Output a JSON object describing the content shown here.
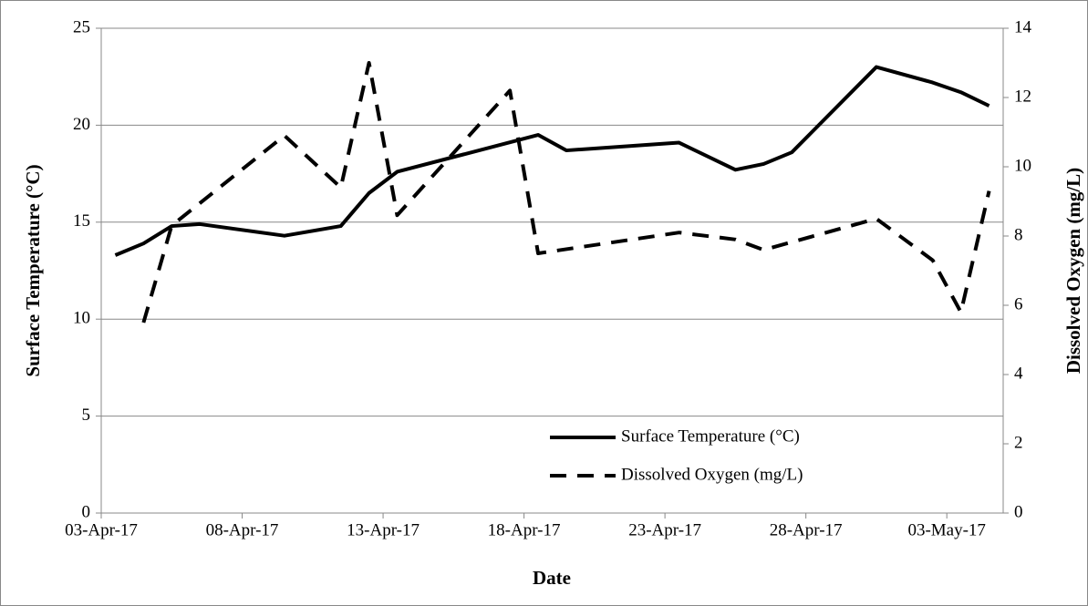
{
  "chart_data": {
    "type": "line",
    "xlabel": "Date",
    "ylabel": "Surface Temperature (°C)",
    "y2label": "Dissolved Oxygen (mg/L)",
    "xlim": [
      "2017-04-03",
      "2017-05-04"
    ],
    "xticks": [
      {
        "value": "2017-04-03",
        "label": "03-Apr-17"
      },
      {
        "value": "2017-04-08",
        "label": "08-Apr-17"
      },
      {
        "value": "2017-04-13",
        "label": "13-Apr-17"
      },
      {
        "value": "2017-04-18",
        "label": "18-Apr-17"
      },
      {
        "value": "2017-04-23",
        "label": "23-Apr-17"
      },
      {
        "value": "2017-04-28",
        "label": "28-Apr-17"
      },
      {
        "value": "2017-05-03",
        "label": "03-May-17"
      }
    ],
    "ylim": [
      0,
      25
    ],
    "yticks": [
      0,
      5,
      10,
      15,
      20,
      25
    ],
    "y2lim": [
      0,
      14
    ],
    "y2ticks": [
      0,
      2,
      4,
      6,
      8,
      10,
      12,
      14
    ],
    "grid": true,
    "legend": "lower right",
    "series": [
      {
        "name": "Surface Temperature (°C)",
        "color": "#000000",
        "dash": "solid",
        "axis": "y",
        "x": [
          "2017-04-03",
          "2017-04-04",
          "2017-04-05",
          "2017-04-06",
          "2017-04-09",
          "2017-04-11",
          "2017-04-12",
          "2017-04-13",
          "2017-04-18",
          "2017-04-19",
          "2017-04-23",
          "2017-04-25",
          "2017-04-26",
          "2017-04-27",
          "2017-04-30",
          "2017-05-02",
          "2017-05-03",
          "2017-05-04"
        ],
        "values": [
          13.3,
          13.9,
          14.8,
          14.9,
          14.3,
          14.8,
          16.5,
          17.6,
          19.5,
          18.7,
          19.1,
          17.7,
          18.0,
          18.6,
          23.0,
          22.2,
          21.7,
          21.0
        ]
      },
      {
        "name": "Dissolved Oxygen (mg/L)",
        "color": "#000000",
        "dash": "dashed",
        "axis": "y2",
        "x": [
          "2017-04-04",
          "2017-04-05",
          "2017-04-09",
          "2017-04-11",
          "2017-04-12",
          "2017-04-13",
          "2017-04-17",
          "2017-04-18",
          "2017-04-23",
          "2017-04-25",
          "2017-04-26",
          "2017-04-30",
          "2017-05-02",
          "2017-05-03",
          "2017-05-04"
        ],
        "values": [
          5.5,
          8.3,
          10.9,
          9.4,
          13.0,
          8.6,
          12.2,
          7.5,
          8.1,
          7.9,
          7.6,
          8.5,
          7.3,
          5.8,
          9.3
        ]
      }
    ]
  }
}
